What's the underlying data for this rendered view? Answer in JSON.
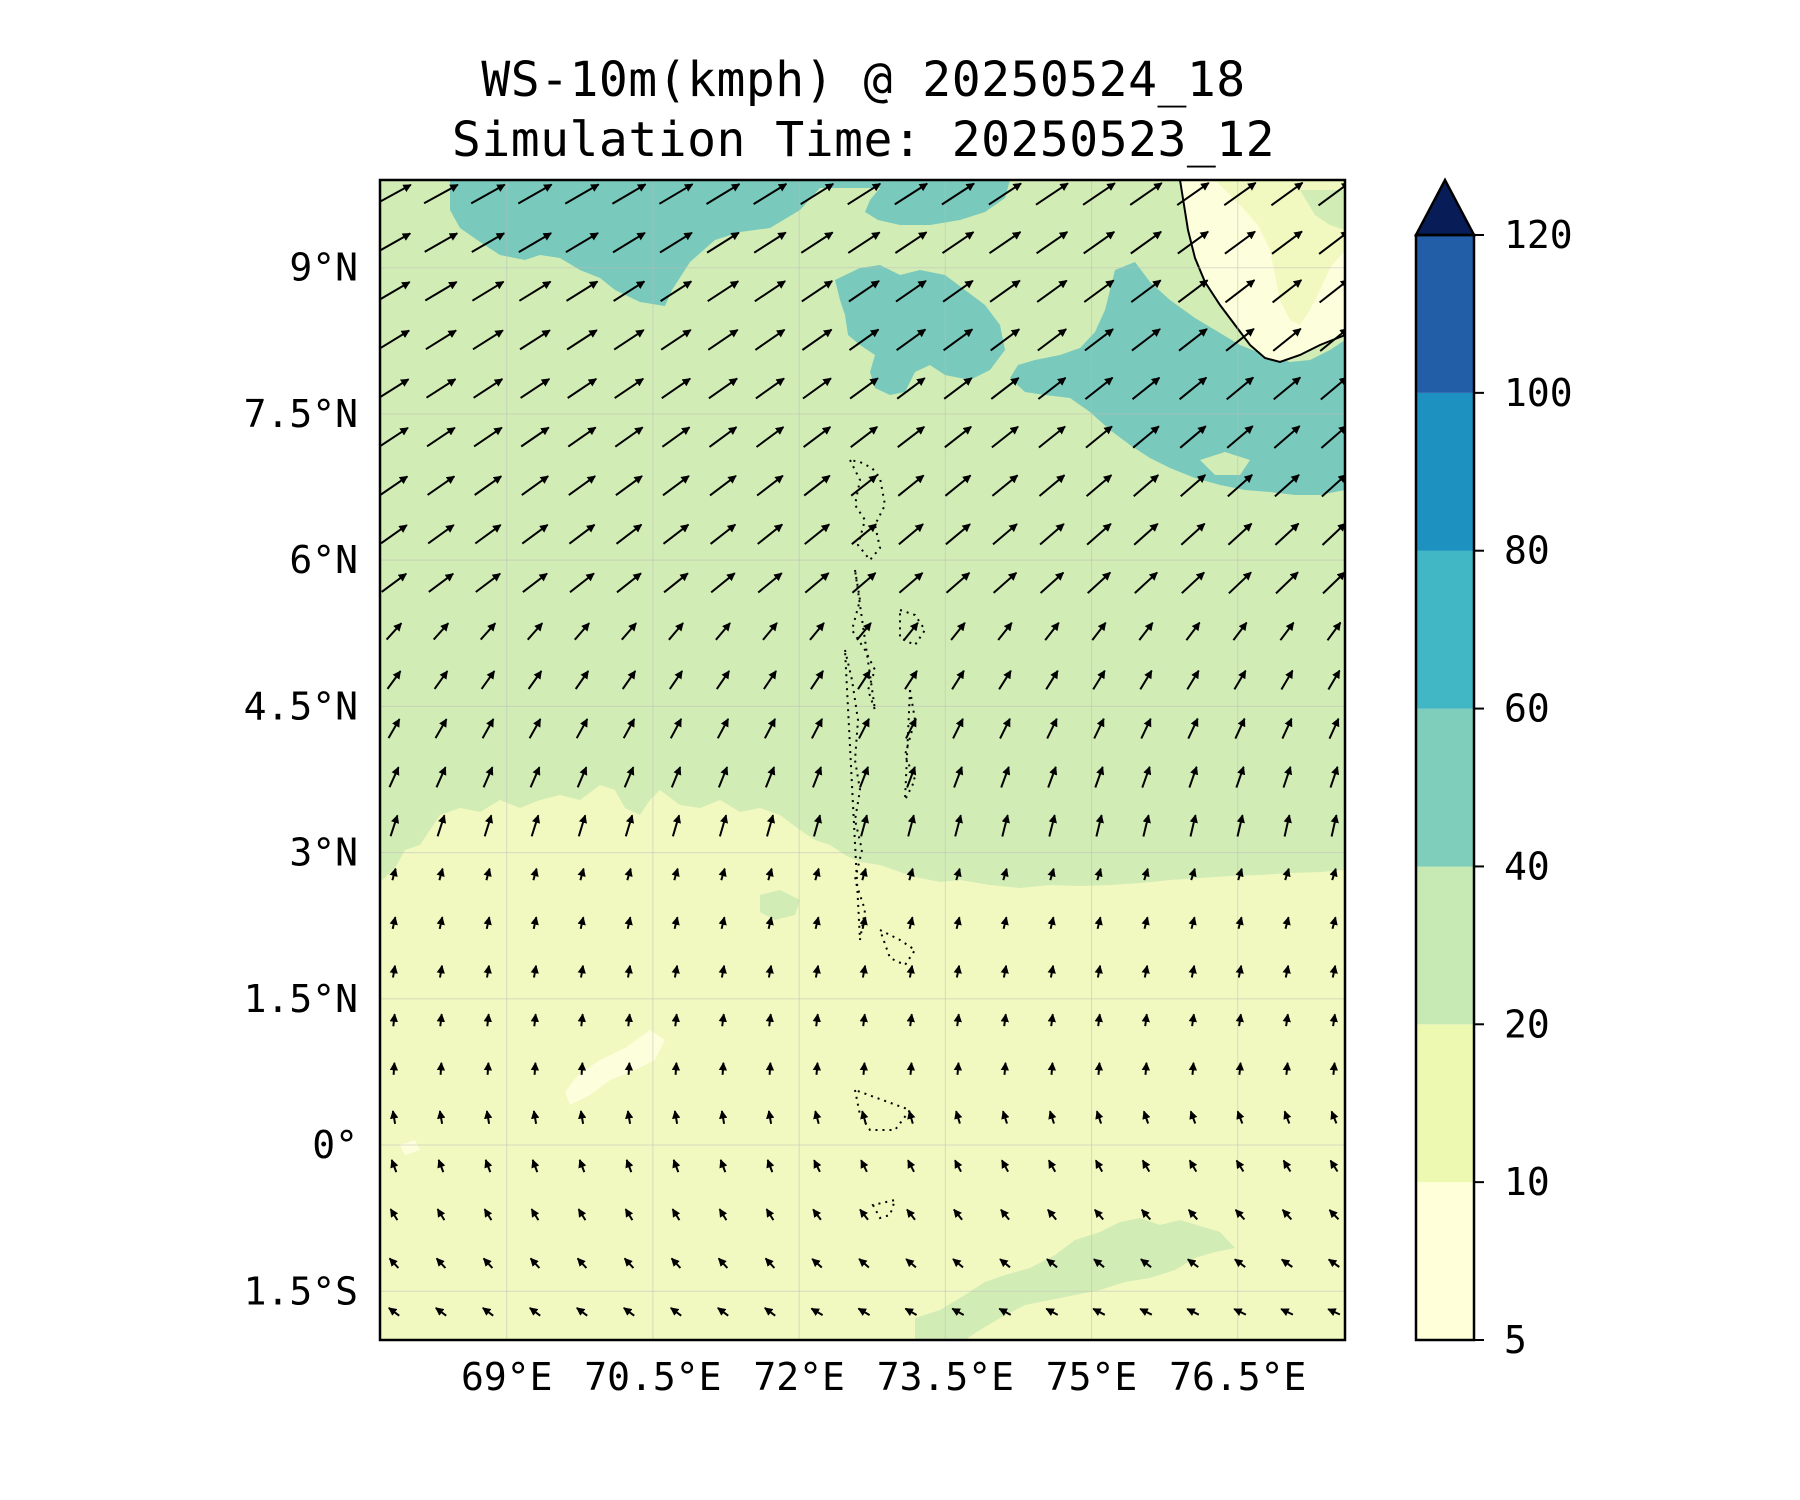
{
  "title": {
    "line1": "WS-10m(kmph) @ 20250524_18",
    "line2": "Simulation Time: 20250523_12"
  },
  "map": {
    "lon_range": [
      67.7,
      77.6
    ],
    "lat_range": [
      -2.0,
      9.9
    ],
    "lon_ticks": [
      {
        "value": 69.0,
        "label": "69°E"
      },
      {
        "value": 70.5,
        "label": "70.5°E"
      },
      {
        "value": 72.0,
        "label": "72°E"
      },
      {
        "value": 73.5,
        "label": "73.5°E"
      },
      {
        "value": 75.0,
        "label": "75°E"
      },
      {
        "value": 76.5,
        "label": "76.5°E"
      }
    ],
    "lat_ticks": [
      {
        "value": 9.0,
        "label": "9°N"
      },
      {
        "value": 7.5,
        "label": "7.5°N"
      },
      {
        "value": 6.0,
        "label": "6°N"
      },
      {
        "value": 4.5,
        "label": "4.5°N"
      },
      {
        "value": 3.0,
        "label": "3°N"
      },
      {
        "value": 1.5,
        "label": "1.5°N"
      },
      {
        "value": 0.0,
        "label": "0°"
      },
      {
        "value": -1.5,
        "label": "1.5°S"
      }
    ]
  },
  "colorbar": {
    "extend": "max",
    "levels": [
      {
        "value": 5,
        "label": "5",
        "color": "#ffffd9"
      },
      {
        "value": 10,
        "label": "10",
        "color": "#edf8b1"
      },
      {
        "value": 20,
        "label": "20",
        "color": "#c7e9b4"
      },
      {
        "value": 40,
        "label": "40",
        "color": "#7fcdbb"
      },
      {
        "value": 60,
        "label": "60",
        "color": "#41b6c4"
      },
      {
        "value": 80,
        "label": "80",
        "color": "#1d91c0"
      },
      {
        "value": 100,
        "label": "100",
        "color": "#225ea8"
      },
      {
        "value": 120,
        "label": "120",
        "color": "#253494"
      }
    ],
    "over_color": "#081d58"
  },
  "colors": {
    "band_10_20": "#f1f9c0",
    "band_20_40": "#d2ecb5",
    "band_40_60": "#79c9bd",
    "band_5_10": "#fdfedc",
    "frame": "#000000"
  }
}
